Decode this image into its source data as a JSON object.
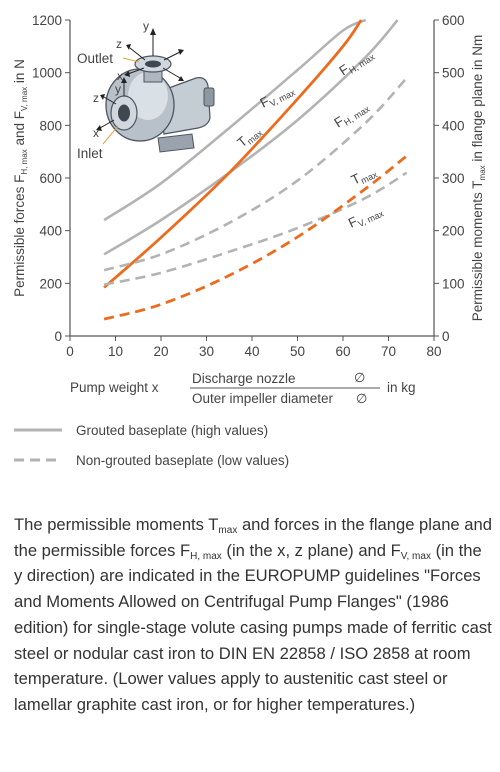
{
  "chart_data": {
    "type": "line",
    "ylabel_left": {
      "main": "Permissible forces F",
      "sub1": "H, max",
      "mid": " and F",
      "sub2": "V, max",
      "end": " in N"
    },
    "ylabel_right": {
      "main": "Permissible moments T",
      "sub": "max",
      "end": " in flange plane in Nm"
    },
    "x_ticks": [
      "0",
      "10",
      "20",
      "30",
      "40",
      "50",
      "60",
      "70",
      "80"
    ],
    "y_left_ticks": [
      "0",
      "200",
      "400",
      "600",
      "800",
      "1000",
      "1200"
    ],
    "y_right_ticks": [
      "0",
      "100",
      "200",
      "300",
      "400",
      "500",
      "600"
    ],
    "xlim": [
      0,
      80
    ],
    "ylim_left": [
      0,
      1200
    ],
    "ylim_right": [
      0,
      600
    ],
    "xlabel": {
      "prefix": "Pump weight  x",
      "numerator": "Discharge nozzle",
      "numerator_symbol": "∅",
      "denominator": "Outer impeller diameter",
      "denominator_symbol": "∅",
      "unit": "in kg"
    },
    "series": [
      {
        "name": "F_V,max",
        "label": "F",
        "label_sub": "V, max",
        "baseplate": "grouted",
        "axis": "left",
        "color": "#b3b3b3",
        "dash": false,
        "x": [
          7.5,
          20,
          35,
          50,
          60,
          65
        ],
        "y": [
          440,
          580,
          790,
          1010,
          1160,
          1200
        ]
      },
      {
        "name": "F_H,max",
        "label": "F",
        "label_sub": "H, max",
        "baseplate": "grouted",
        "axis": "left",
        "color": "#b3b3b3",
        "dash": false,
        "x": [
          7.5,
          20,
          35,
          50,
          65,
          72
        ],
        "y": [
          310,
          440,
          620,
          820,
          1060,
          1200
        ]
      },
      {
        "name": "T_max",
        "label": "T",
        "label_sub": "max",
        "baseplate": "grouted",
        "axis": "right",
        "color": "#ee6a1c",
        "dash": false,
        "x": [
          7.5,
          20,
          35,
          50,
          60,
          64
        ],
        "y": [
          92,
          187,
          310,
          450,
          550,
          600
        ]
      },
      {
        "name": "F_V,max",
        "label": "F",
        "label_sub": "V, max",
        "baseplate": "non-grouted",
        "axis": "left",
        "color": "#b3b3b3",
        "dash": true,
        "x": [
          7.5,
          20,
          35,
          50,
          65,
          74
        ],
        "y": [
          195,
          240,
          320,
          410,
          525,
          620
        ]
      },
      {
        "name": "F_H,max",
        "label": "F",
        "label_sub": "H, max",
        "baseplate": "non-grouted",
        "axis": "left",
        "color": "#b3b3b3",
        "dash": true,
        "x": [
          7.5,
          20,
          35,
          50,
          65,
          74
        ],
        "y": [
          250,
          310,
          430,
          590,
          810,
          980
        ]
      },
      {
        "name": "T_max",
        "label": "T",
        "label_sub": "max",
        "baseplate": "non-grouted",
        "axis": "right",
        "color": "#ee6a1c",
        "dash": true,
        "x": [
          7.5,
          20,
          35,
          50,
          65,
          74
        ],
        "y": [
          32,
          60,
          115,
          188,
          280,
          342
        ]
      }
    ],
    "legend": [
      {
        "text": "Grouted baseplate (high values)",
        "dash": false
      },
      {
        "text": "Non-grouted baseplate (low values)",
        "dash": true
      }
    ],
    "inset": {
      "outlet_label": "Outlet",
      "inlet_label": "Inlet",
      "axis_labels": {
        "x": "x",
        "y": "y",
        "z": "z"
      }
    },
    "grid": false
  },
  "caption": {
    "t1": "The permissible moments T",
    "s1": "max",
    "t2": " and forces in the flange plane and the permissible forces F",
    "s2": "H, max",
    "t3": " (in the x, z plane) and F",
    "s3": "V, max",
    "t4": " (in the y direction) are indicated in the EUROPUMP guidelines \"Forces and Moments Allowed on Centrifugal Pump Flanges\" (1986 edition) for single-stage volute casing pumps made of ferritic cast steel or nodular cast iron to DIN EN 22858 / ISO 2858 at room temperature. (Lower values apply to austenitic cast steel or lamellar graphite cast iron, or for higher temperatures.)"
  }
}
